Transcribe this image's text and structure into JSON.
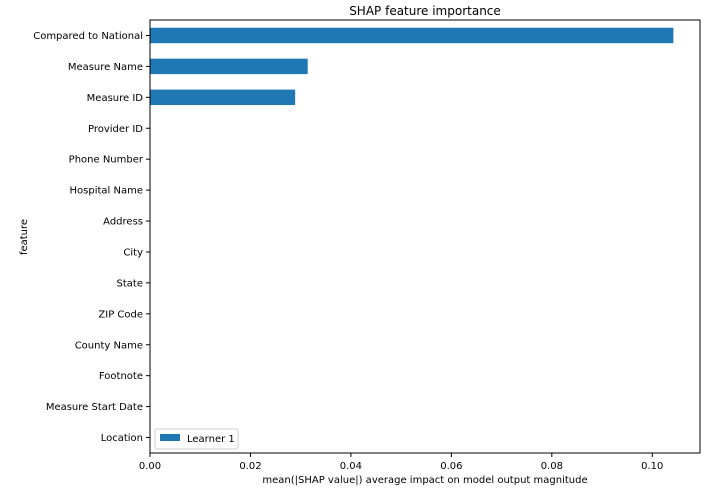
{
  "chart_data": {
    "type": "bar",
    "orientation": "horizontal",
    "title": "SHAP feature importance",
    "xlabel": "mean(|SHAP value|) average impact on model output magnitude",
    "ylabel": "feature",
    "xlim": [
      0,
      0.1095
    ],
    "xticks": [
      0.0,
      0.02,
      0.04,
      0.06,
      0.08,
      0.1
    ],
    "xtick_labels": [
      "0.00",
      "0.02",
      "0.04",
      "0.06",
      "0.08",
      "0.10"
    ],
    "categories": [
      "Compared to National",
      "Measure Name",
      "Measure ID",
      "Provider ID",
      "Phone Number",
      "Hospital Name",
      "Address",
      "City",
      "State",
      "ZIP Code",
      "County Name",
      "Footnote",
      "Measure Start Date",
      "Location"
    ],
    "series": [
      {
        "name": "Learner 1",
        "color": "#1f77b4",
        "values": [
          0.1042,
          0.0314,
          0.0289,
          0,
          0,
          0,
          0,
          0,
          0,
          0,
          0,
          0,
          0,
          0
        ]
      }
    ],
    "legend_position": "lower-left",
    "grid": false
  }
}
